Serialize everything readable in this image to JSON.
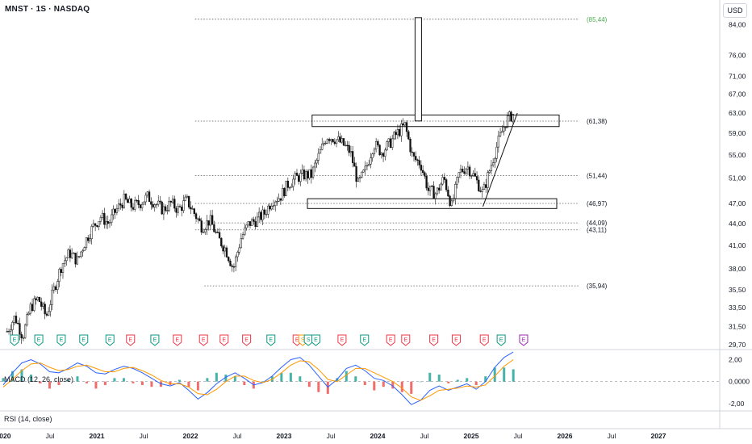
{
  "header": {
    "symbol_title": "MNST · 1S · NASDAQ",
    "currency": "USD"
  },
  "chart_data": [
    {
      "type": "candlestick",
      "pane": "price",
      "x_axis_labels": [
        "2020",
        "Jul",
        "2021",
        "Jul",
        "2022",
        "Jul",
        "2023",
        "Jul",
        "2024",
        "Jul",
        "2025",
        "Jul",
        "2026",
        "Jul",
        "2027"
      ],
      "y_axis_labels": [
        "84,00",
        "76,00",
        "71,00",
        "67,00",
        "63,00",
        "59,00",
        "55,00",
        "51,00",
        "47,00",
        "44,00",
        "41,00",
        "38,00",
        "35,50",
        "33,50",
        "31,50",
        "29,70"
      ],
      "y_scale": "log",
      "ylim": [
        29.3,
        90
      ],
      "close_points": [
        [
          "2020-01",
          31.0
        ],
        [
          "2020-02",
          32.5
        ],
        [
          "2020-03",
          30.5
        ],
        [
          "2020-04",
          33.5
        ],
        [
          "2020-05",
          34.5
        ],
        [
          "2020-06",
          32.5
        ],
        [
          "2020-07",
          35.5
        ],
        [
          "2020-08",
          38.5
        ],
        [
          "2020-09",
          40.0
        ],
        [
          "2020-10",
          39.0
        ],
        [
          "2020-11",
          41.5
        ],
        [
          "2020-12",
          43.5
        ],
        [
          "2021-01",
          45.0
        ],
        [
          "2021-02",
          44.0
        ],
        [
          "2021-03",
          46.0
        ],
        [
          "2021-04",
          47.5
        ],
        [
          "2021-05",
          46.5
        ],
        [
          "2021-06",
          47.0
        ],
        [
          "2021-07",
          48.0
        ],
        [
          "2021-08",
          47.0
        ],
        [
          "2021-09",
          46.0
        ],
        [
          "2021-10",
          47.0
        ],
        [
          "2021-11",
          46.0
        ],
        [
          "2021-12",
          47.5
        ],
        [
          "2022-01",
          45.5
        ],
        [
          "2022-02",
          43.5
        ],
        [
          "2022-03",
          44.5
        ],
        [
          "2022-04",
          42.0
        ],
        [
          "2022-05",
          40.5
        ],
        [
          "2022-06",
          38.0
        ],
        [
          "2022-07",
          42.0
        ],
        [
          "2022-08",
          44.0
        ],
        [
          "2022-09",
          44.5
        ],
        [
          "2022-10",
          45.5
        ],
        [
          "2022-11",
          47.5
        ],
        [
          "2022-12",
          48.0
        ],
        [
          "2023-01",
          50.0
        ],
        [
          "2023-02",
          51.0
        ],
        [
          "2023-03",
          51.5
        ],
        [
          "2023-04",
          51.5
        ],
        [
          "2023-05",
          55.0
        ],
        [
          "2023-06",
          58.5
        ],
        [
          "2023-07",
          58.0
        ],
        [
          "2023-08",
          57.0
        ],
        [
          "2023-09",
          55.5
        ],
        [
          "2023-10",
          50.0
        ],
        [
          "2023-11",
          52.5
        ],
        [
          "2023-12",
          57.0
        ],
        [
          "2024-01",
          55.5
        ],
        [
          "2024-02",
          57.0
        ],
        [
          "2024-03",
          59.0
        ],
        [
          "2024-04",
          60.5
        ],
        [
          "2024-05",
          54.5
        ],
        [
          "2024-06",
          53.5
        ],
        [
          "2024-07",
          49.0
        ],
        [
          "2024-08",
          48.5
        ],
        [
          "2024-09",
          51.0
        ],
        [
          "2024-10",
          46.5
        ],
        [
          "2024-11",
          52.0
        ],
        [
          "2024-12",
          53.0
        ],
        [
          "2025-01",
          51.0
        ],
        [
          "2025-02",
          48.5
        ],
        [
          "2025-03",
          53.0
        ],
        [
          "2025-04",
          57.5
        ],
        [
          "2025-05",
          61.5
        ],
        [
          "2025-06",
          63.0
        ]
      ],
      "price_levels": [
        {
          "label": "(85,44)",
          "value": 85.44,
          "color": "#4caf50"
        },
        {
          "label": "(61,38)",
          "value": 61.38
        },
        {
          "label": "(51,44)",
          "value": 51.44
        },
        {
          "label": "(46,97)",
          "value": 46.97
        },
        {
          "label": "(44,09)",
          "value": 44.09
        },
        {
          "label": "(43,11)",
          "value": 43.11
        },
        {
          "label": "(35,94)",
          "value": 35.94
        }
      ],
      "drawings": {
        "resistance_box": [
          60.3,
          62.6
        ],
        "support_box": [
          46.2,
          47.7
        ],
        "measured_move_bar": [
          61.4,
          85.44
        ],
        "trendline": [
          [
            "2025-02",
            46.5
          ],
          [
            "2025-06",
            63.0
          ]
        ]
      },
      "event_markers": [
        {
          "t": 2020.12,
          "label": "E",
          "kind": "positive"
        },
        {
          "t": 2020.38,
          "label": "E",
          "kind": "positive"
        },
        {
          "t": 2020.62,
          "label": "E",
          "kind": "positive"
        },
        {
          "t": 2020.86,
          "label": "E",
          "kind": "positive"
        },
        {
          "t": 2021.14,
          "label": "E",
          "kind": "positive"
        },
        {
          "t": 2021.36,
          "label": "E",
          "kind": "negative"
        },
        {
          "t": 2021.62,
          "label": "E",
          "kind": "positive"
        },
        {
          "t": 2021.86,
          "label": "E",
          "kind": "negative"
        },
        {
          "t": 2022.14,
          "label": "E",
          "kind": "negative"
        },
        {
          "t": 2022.36,
          "label": "E",
          "kind": "negative"
        },
        {
          "t": 2022.6,
          "label": "E",
          "kind": "negative"
        },
        {
          "t": 2022.86,
          "label": "E",
          "kind": "positive"
        },
        {
          "t": 2023.14,
          "label": "E",
          "kind": "negative"
        },
        {
          "t": 2023.2,
          "label": "S",
          "kind": "split"
        },
        {
          "t": 2023.26,
          "label": "S",
          "kind": "positive"
        },
        {
          "t": 2023.34,
          "label": "E",
          "kind": "positive"
        },
        {
          "t": 2023.62,
          "label": "E",
          "kind": "negative"
        },
        {
          "t": 2023.86,
          "label": "E",
          "kind": "positive"
        },
        {
          "t": 2024.14,
          "label": "E",
          "kind": "negative"
        },
        {
          "t": 2024.3,
          "label": "E",
          "kind": "negative"
        },
        {
          "t": 2024.6,
          "label": "E",
          "kind": "negative"
        },
        {
          "t": 2024.84,
          "label": "E",
          "kind": "negative"
        },
        {
          "t": 2025.14,
          "label": "E",
          "kind": "negative"
        },
        {
          "t": 2025.32,
          "label": "E",
          "kind": "positive"
        },
        {
          "t": 2025.56,
          "label": "E",
          "kind": "future"
        }
      ]
    },
    {
      "type": "line",
      "pane": "macd",
      "title": "MACD (12, 26, close)",
      "y_axis_labels": [
        "2,00",
        "0,0000",
        "-2,00"
      ],
      "ylim": [
        -2.6,
        2.7
      ],
      "series": [
        {
          "name": "MACD",
          "color": "#2962ff",
          "values": [
            -0.3,
            0.8,
            1.7,
            2.0,
            1.6,
            0.9,
            0.8,
            1.2,
            1.7,
            1.4,
            0.8,
            0.7,
            1.1,
            1.4,
            1.2,
            0.8,
            0.3,
            -0.2,
            -0.4,
            -0.1,
            -0.8,
            -1.6,
            -1.0,
            -0.2,
            0.4,
            0.8,
            0.3,
            -0.3,
            -0.1,
            0.5,
            1.3,
            2.0,
            2.2,
            1.5,
            0.5,
            -0.5,
            0.2,
            1.2,
            1.5,
            1.0,
            0.3,
            0.1,
            -0.4,
            -1.2,
            -2.1,
            -1.7,
            -0.8,
            -0.4,
            -0.8,
            -0.5,
            -0.2,
            -0.7,
            0.0,
            1.3,
            2.2,
            2.7
          ]
        },
        {
          "name": "Signal",
          "color": "#ff9800",
          "values": [
            -0.5,
            0.2,
            1.0,
            1.6,
            1.7,
            1.3,
            1.0,
            1.1,
            1.4,
            1.5,
            1.2,
            0.9,
            0.9,
            1.2,
            1.3,
            1.0,
            0.6,
            0.1,
            -0.2,
            -0.2,
            -0.5,
            -1.1,
            -1.2,
            -0.7,
            0.0,
            0.5,
            0.5,
            0.1,
            -0.1,
            0.2,
            0.8,
            1.5,
            1.9,
            1.8,
            1.1,
            0.2,
            0.0,
            0.6,
            1.2,
            1.2,
            0.8,
            0.4,
            0.0,
            -0.6,
            -1.4,
            -1.7,
            -1.3,
            -0.8,
            -0.7,
            -0.6,
            -0.4,
            -0.5,
            -0.3,
            0.5,
            1.4,
            2.0
          ]
        }
      ]
    },
    {
      "type": "line",
      "pane": "rsi",
      "title": "RSI (14, close)"
    }
  ]
}
